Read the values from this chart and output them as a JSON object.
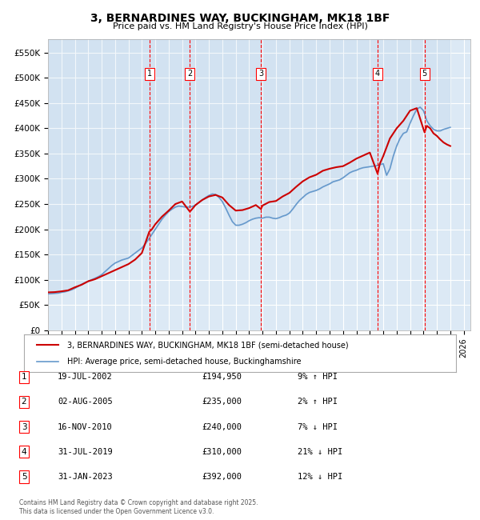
{
  "title": "3, BERNARDINES WAY, BUCKINGHAM, MK18 1BF",
  "subtitle": "Price paid vs. HM Land Registry's House Price Index (HPI)",
  "ylabel": "",
  "xlabel": "",
  "ylim": [
    0,
    577000
  ],
  "yticks": [
    0,
    50000,
    100000,
    150000,
    200000,
    250000,
    300000,
    350000,
    400000,
    450000,
    500000,
    550000
  ],
  "ytick_labels": [
    "£0",
    "£50K",
    "£100K",
    "£150K",
    "£200K",
    "£250K",
    "£300K",
    "£350K",
    "£400K",
    "£450K",
    "£500K",
    "£550K"
  ],
  "xlim_start": 1995.0,
  "xlim_end": 2026.5,
  "chart_bg": "#dce9f5",
  "fig_bg": "#ffffff",
  "grid_color": "#ffffff",
  "sale_dates_x": [
    2002.55,
    2005.58,
    2010.88,
    2019.58,
    2023.08
  ],
  "sale_prices": [
    194950,
    235000,
    240000,
    310000,
    392000
  ],
  "sale_labels": [
    "1",
    "2",
    "3",
    "4",
    "5"
  ],
  "legend_line1": "3, BERNARDINES WAY, BUCKINGHAM, MK18 1BF (semi-detached house)",
  "legend_line2": "HPI: Average price, semi-detached house, Buckinghamshire",
  "table_rows": [
    [
      "1",
      "19-JUL-2002",
      "£194,950",
      "9% ↑ HPI"
    ],
    [
      "2",
      "02-AUG-2005",
      "£235,000",
      "2% ↑ HPI"
    ],
    [
      "3",
      "16-NOV-2010",
      "£240,000",
      "7% ↓ HPI"
    ],
    [
      "4",
      "31-JUL-2019",
      "£310,000",
      "21% ↓ HPI"
    ],
    [
      "5",
      "31-JAN-2023",
      "£392,000",
      "12% ↓ HPI"
    ]
  ],
  "footer": "Contains HM Land Registry data © Crown copyright and database right 2025.\nThis data is licensed under the Open Government Licence v3.0.",
  "red_line_color": "#cc0000",
  "blue_line_color": "#6699cc",
  "hpi_data_x": [
    1995.0,
    1995.25,
    1995.5,
    1995.75,
    1996.0,
    1996.25,
    1996.5,
    1996.75,
    1997.0,
    1997.25,
    1997.5,
    1997.75,
    1998.0,
    1998.25,
    1998.5,
    1998.75,
    1999.0,
    1999.25,
    1999.5,
    1999.75,
    2000.0,
    2000.25,
    2000.5,
    2000.75,
    2001.0,
    2001.25,
    2001.5,
    2001.75,
    2002.0,
    2002.25,
    2002.5,
    2002.75,
    2003.0,
    2003.25,
    2003.5,
    2003.75,
    2004.0,
    2004.25,
    2004.5,
    2004.75,
    2005.0,
    2005.25,
    2005.5,
    2005.75,
    2006.0,
    2006.25,
    2006.5,
    2006.75,
    2007.0,
    2007.25,
    2007.5,
    2007.75,
    2008.0,
    2008.25,
    2008.5,
    2008.75,
    2009.0,
    2009.25,
    2009.5,
    2009.75,
    2010.0,
    2010.25,
    2010.5,
    2010.75,
    2011.0,
    2011.25,
    2011.5,
    2011.75,
    2012.0,
    2012.25,
    2012.5,
    2012.75,
    2013.0,
    2013.25,
    2013.5,
    2013.75,
    2014.0,
    2014.25,
    2014.5,
    2014.75,
    2015.0,
    2015.25,
    2015.5,
    2015.75,
    2016.0,
    2016.25,
    2016.5,
    2016.75,
    2017.0,
    2017.25,
    2017.5,
    2017.75,
    2018.0,
    2018.25,
    2018.5,
    2018.75,
    2019.0,
    2019.25,
    2019.5,
    2019.75,
    2020.0,
    2020.25,
    2020.5,
    2020.75,
    2021.0,
    2021.25,
    2021.5,
    2021.75,
    2022.0,
    2022.25,
    2022.5,
    2022.75,
    2023.0,
    2023.25,
    2023.5,
    2023.75,
    2024.0,
    2024.25,
    2024.5,
    2024.75,
    2025.0
  ],
  "hpi_data_y": [
    72000,
    72500,
    73000,
    73500,
    75000,
    76000,
    78000,
    80000,
    83000,
    87000,
    91000,
    94000,
    97000,
    100000,
    103000,
    106000,
    110000,
    116000,
    122000,
    128000,
    133000,
    136000,
    139000,
    141000,
    143000,
    148000,
    153000,
    158000,
    163000,
    171000,
    180000,
    190000,
    200000,
    210000,
    220000,
    228000,
    235000,
    240000,
    244000,
    246000,
    245000,
    244000,
    244000,
    245000,
    248000,
    253000,
    258000,
    263000,
    267000,
    270000,
    269000,
    263000,
    255000,
    242000,
    228000,
    215000,
    208000,
    208000,
    210000,
    213000,
    217000,
    220000,
    222000,
    223000,
    222000,
    224000,
    224000,
    222000,
    221000,
    223000,
    226000,
    228000,
    232000,
    240000,
    249000,
    257000,
    263000,
    269000,
    273000,
    275000,
    277000,
    280000,
    284000,
    287000,
    290000,
    294000,
    296000,
    298000,
    302000,
    307000,
    312000,
    315000,
    317000,
    320000,
    322000,
    323000,
    324000,
    325000,
    326000,
    328000,
    330000,
    307000,
    320000,
    345000,
    365000,
    380000,
    390000,
    393000,
    410000,
    425000,
    438000,
    442000,
    435000,
    415000,
    405000,
    398000,
    395000,
    395000,
    398000,
    400000,
    402000
  ],
  "price_paid_x": [
    1995.0,
    1995.5,
    1996.0,
    1996.5,
    1997.0,
    1997.5,
    1998.0,
    1998.5,
    1999.0,
    1999.5,
    2000.0,
    2000.5,
    2001.0,
    2001.5,
    2002.0,
    2002.55,
    2002.75,
    2003.0,
    2003.5,
    2004.0,
    2004.5,
    2005.0,
    2005.58,
    2005.75,
    2006.0,
    2006.5,
    2007.0,
    2007.5,
    2008.0,
    2008.5,
    2009.0,
    2009.5,
    2010.0,
    2010.5,
    2010.88,
    2011.0,
    2011.5,
    2012.0,
    2012.5,
    2013.0,
    2013.5,
    2014.0,
    2014.5,
    2015.0,
    2015.5,
    2016.0,
    2016.5,
    2017.0,
    2017.5,
    2018.0,
    2018.5,
    2019.0,
    2019.58,
    2019.75,
    2020.0,
    2020.5,
    2021.0,
    2021.5,
    2022.0,
    2022.5,
    2023.08,
    2023.25,
    2023.5,
    2023.75,
    2024.0,
    2024.25,
    2024.5,
    2024.75,
    2025.0
  ],
  "price_paid_y": [
    75000,
    75500,
    77000,
    79000,
    85000,
    90000,
    97000,
    101000,
    107000,
    113000,
    119000,
    125000,
    131000,
    140000,
    153000,
    194950,
    200000,
    210000,
    225000,
    237000,
    250000,
    255000,
    235000,
    240000,
    248000,
    258000,
    265000,
    268000,
    263000,
    248000,
    237000,
    238000,
    242000,
    248000,
    240000,
    247000,
    254000,
    256000,
    265000,
    272000,
    284000,
    295000,
    303000,
    308000,
    316000,
    320000,
    323000,
    325000,
    332000,
    340000,
    346000,
    352000,
    310000,
    330000,
    345000,
    380000,
    400000,
    415000,
    435000,
    440000,
    392000,
    405000,
    400000,
    390000,
    385000,
    378000,
    372000,
    368000,
    365000
  ]
}
